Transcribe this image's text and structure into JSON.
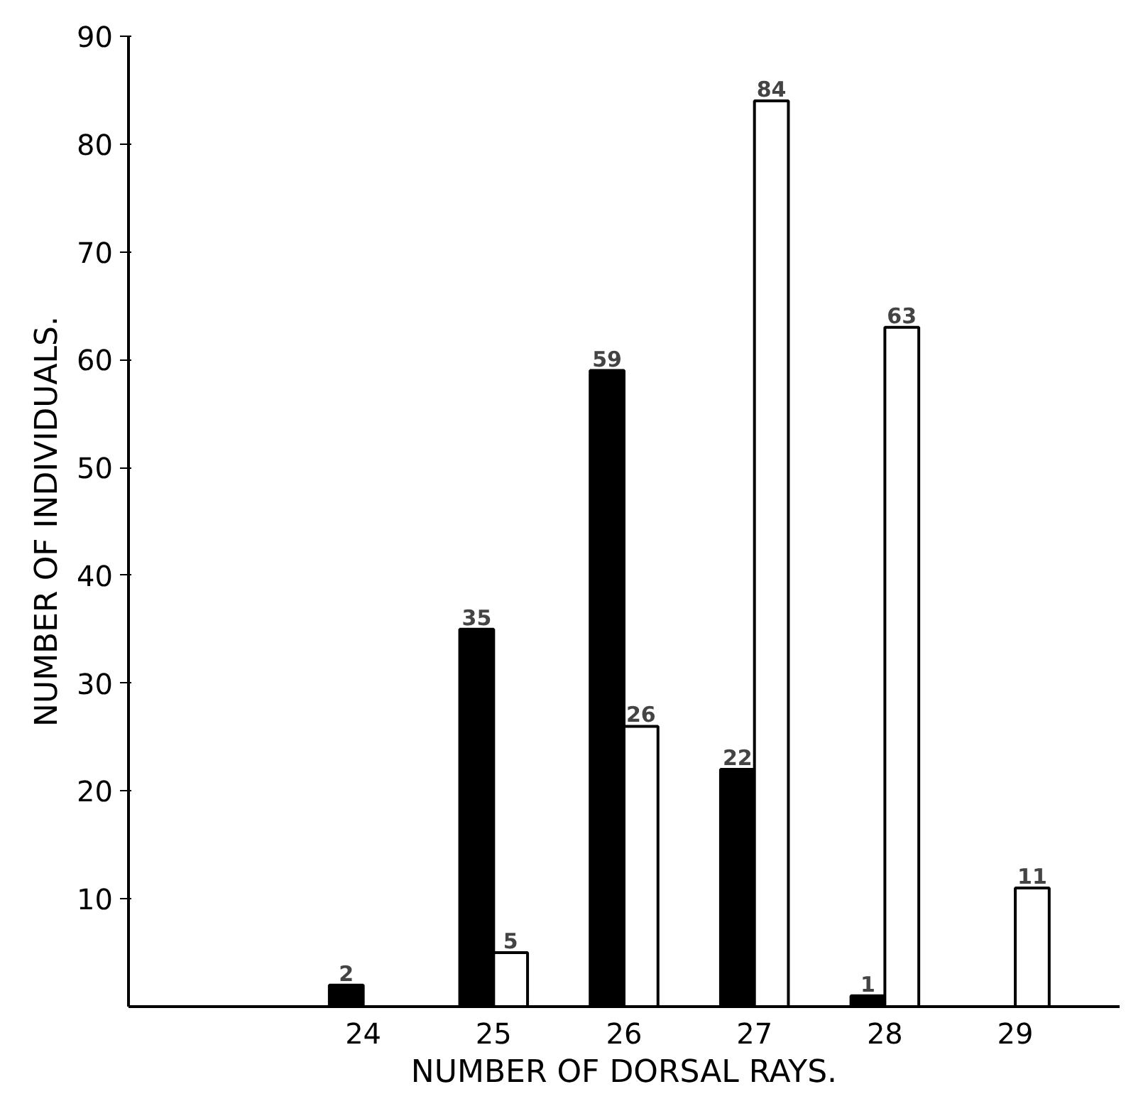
{
  "chart_data": {
    "type": "bar",
    "xlabel": "NUMBER OF DORSAL RAYS.",
    "ylabel": "NUMBER OF INDIVIDUALS.",
    "x": [
      24,
      25,
      26,
      27,
      28,
      29
    ],
    "xlim": [
      22.2,
      29.8
    ],
    "xticks": [
      24,
      25,
      26,
      27,
      28,
      29
    ],
    "ylim": [
      0,
      90
    ],
    "yticks": [
      10,
      20,
      30,
      40,
      50,
      60,
      70,
      80,
      90
    ],
    "series": [
      {
        "color": "#000000",
        "values": [
          2,
          35,
          59,
          22,
          1,
          null
        ]
      },
      {
        "color": "#ffffff",
        "values": [
          null,
          5,
          26,
          84,
          63,
          11
        ]
      }
    ],
    "data_labels": true
  }
}
